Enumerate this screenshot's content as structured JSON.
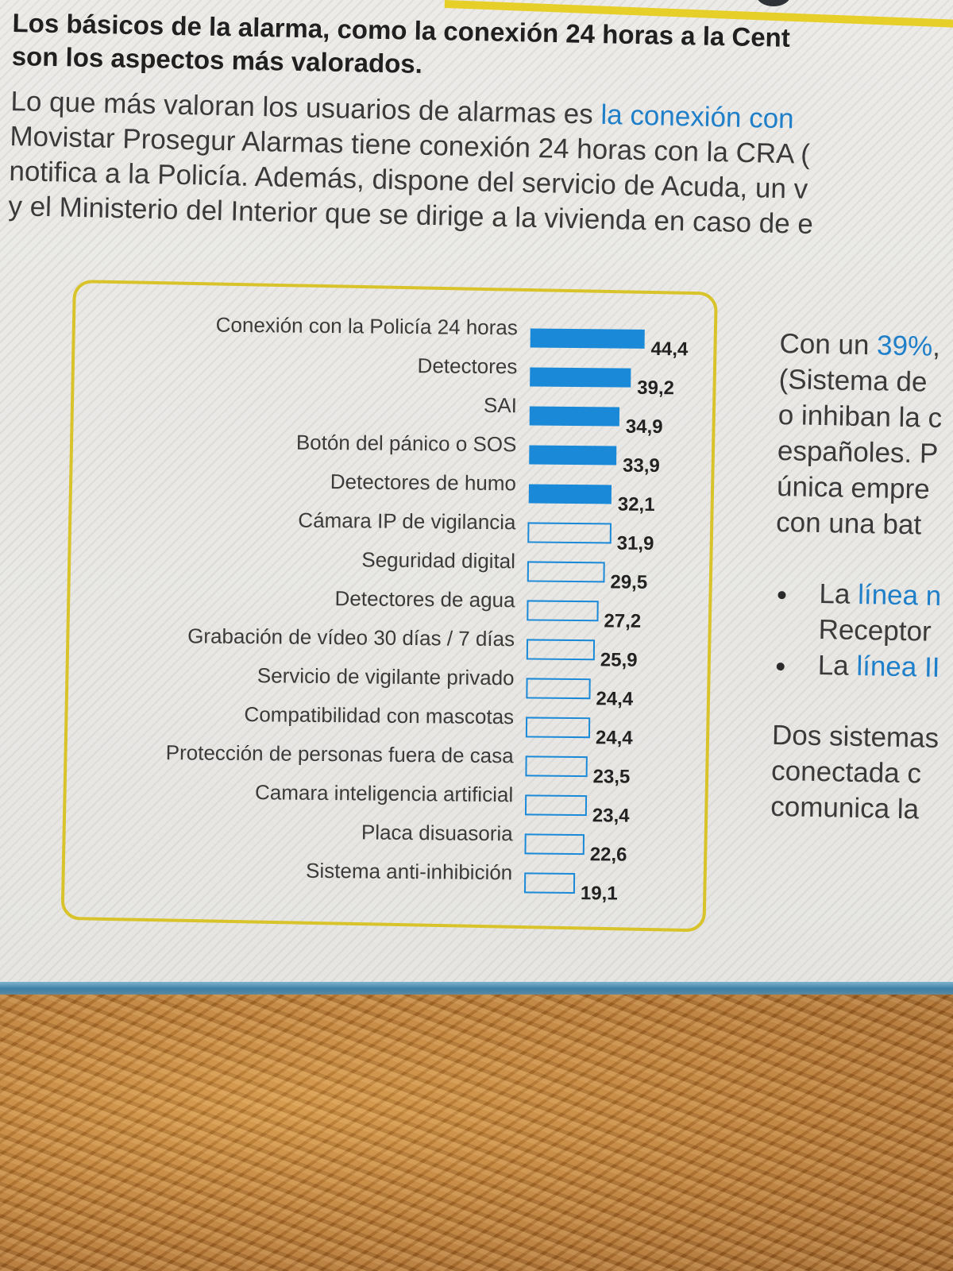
{
  "heading": {
    "line1": "Los básicos de la alarma, como la conexión 24 horas a la Cent",
    "line2": "son los aspectos más valorados."
  },
  "intro": {
    "line1": "Lo que más valoran los usuarios de alarmas es ",
    "line1_highlight": "la conexión con",
    "line2": "Movistar Prosegur Alarmas tiene conexión 24 horas con la CRA (",
    "line3": "notifica a la Policía. Además, dispone del servicio de Acuda, un v",
    "line4": "y el Ministerio del Interior que se dirige a la vivienda en caso de e"
  },
  "side": {
    "l1_pre": "Con un ",
    "l1_highlight": "39%",
    "l1_post": ",",
    "l2": "(Sistema de",
    "l3": "o inhiban la c",
    "l4": "españoles. P",
    "l5": "única empre",
    "l6": "con una bat",
    "b1_pre": "La ",
    "b1_highlight": "línea n",
    "b1_cont": "Receptor",
    "b2_pre": "La ",
    "b2_highlight": "línea II",
    "p2_l1": "Dos sistemas",
    "p2_l2": "conectada c",
    "p2_l3": "comunica la"
  },
  "colors": {
    "accent_blue": "#1a8ad8",
    "frame_yellow": "#d8c42a",
    "text_blue": "#1f7fc9"
  },
  "chart_data": {
    "type": "bar",
    "orientation": "horizontal",
    "title": "",
    "xlabel": "",
    "ylabel": "",
    "categories": [
      "Conexión con la Policía 24 horas",
      "Detectores",
      "SAI",
      "Botón del pánico o SOS",
      "Detectores de humo",
      "Cámara IP de vigilancia",
      "Seguridad digital",
      "Detectores de agua",
      "Grabación de vídeo 30 días / 7 días",
      "Servicio de vigilante privado",
      "Compatibilidad con mascotas",
      "Protección de personas fuera de casa",
      "Camara inteligencia artificial",
      "Placa disuasoria",
      "Sistema anti-inhibición"
    ],
    "values": [
      44.4,
      39.2,
      34.9,
      33.9,
      32.1,
      31.9,
      29.5,
      27.2,
      25.9,
      24.4,
      24.4,
      23.5,
      23.4,
      22.6,
      19.1
    ],
    "value_labels": [
      "44,4",
      "39,2",
      "34,9",
      "33,9",
      "32,1",
      "31,9",
      "29,5",
      "27,2",
      "25,9",
      "24,4",
      "24,4",
      "23,5",
      "23,4",
      "22,6",
      "19,1"
    ],
    "highlighted_count": 5,
    "grid": false,
    "legend": "none"
  }
}
